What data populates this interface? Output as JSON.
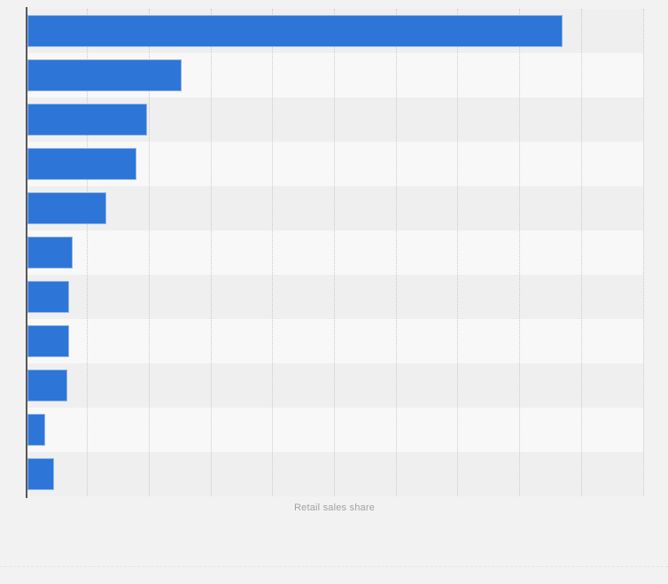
{
  "page": {
    "background_color": "#f2f2f2"
  },
  "chart_data": {
    "type": "bar",
    "orientation": "horizontal",
    "title": "",
    "xlabel": "Retail sales share",
    "ylabel": "",
    "values": [
      8.7,
      2.52,
      1.96,
      1.79,
      1.3,
      0.76,
      0.7,
      0.71,
      0.67,
      0.32,
      0.46
    ],
    "xlim": [
      0,
      10
    ],
    "gridline_interval": 1,
    "grid": "vertical-dotted",
    "axis_tick_labels_visible": false,
    "category_labels_visible": false,
    "note": "Axis tick labels and category labels are not shown in the image; values are measured in gridline intervals from the baseline.",
    "bar_color": "#2d75d7",
    "bar_border_color": "rgba(255,255,255,0.45)",
    "row_stripe_colors": [
      "#efefef",
      "#f8f8f8"
    ],
    "gridline_color": "#c9c9c9",
    "axis_line_color": "#58585a",
    "xlabel_color": "#a1a1a1",
    "legend": "none"
  },
  "footer": {
    "divider_color": "#e4e4e4"
  }
}
